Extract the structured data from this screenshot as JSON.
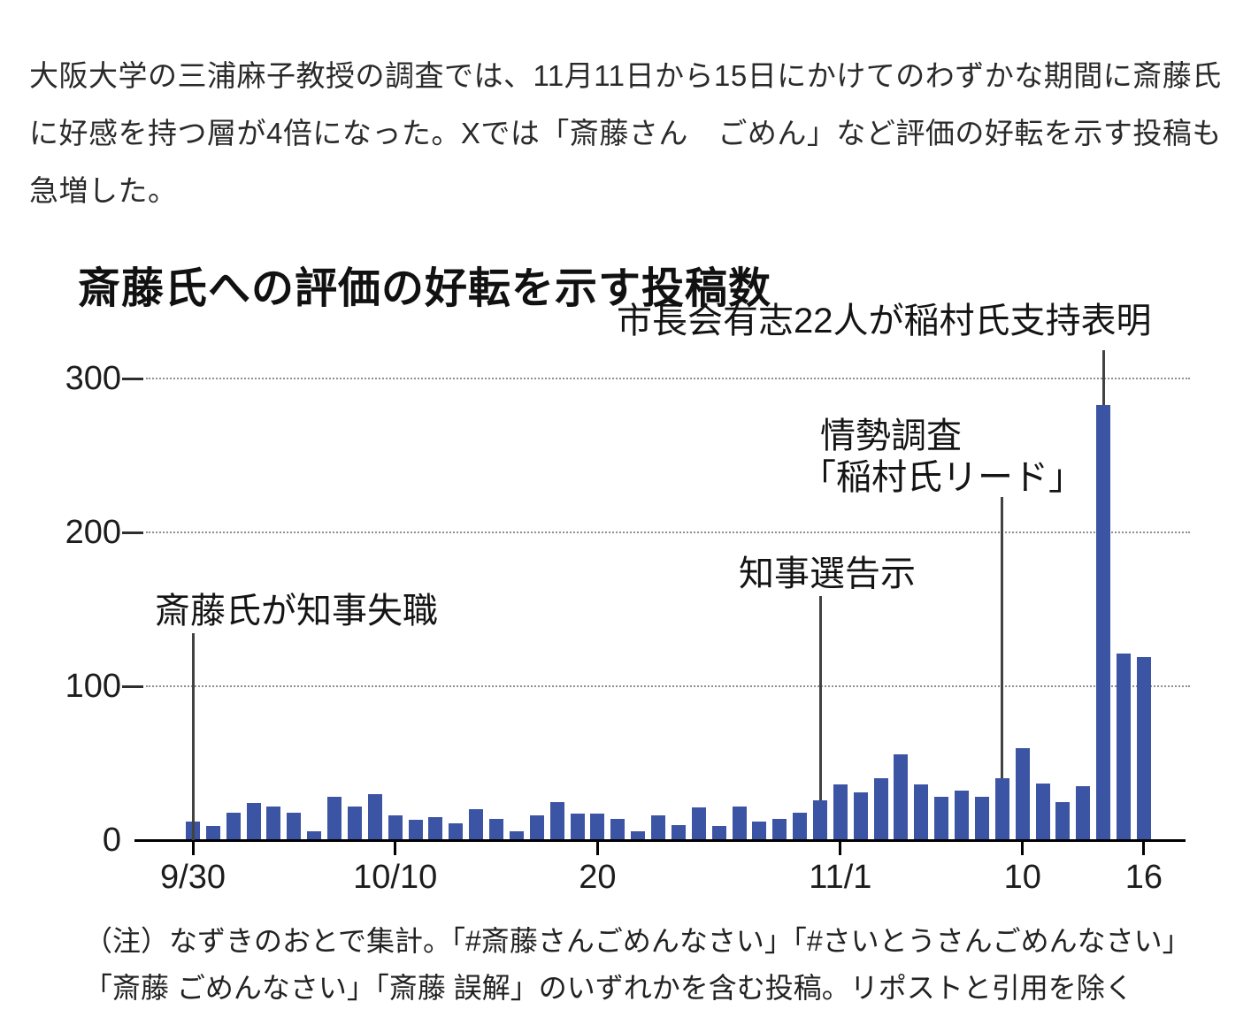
{
  "intro": {
    "text": "大阪大学の三浦麻子教授の調査では、11月11日から15日にかけてのわずかな期間に斎藤氏に好感を持つ層が4倍になった。Xでは「斎藤さん　ごめん」など評価の好転を示す投稿も急増した。"
  },
  "chart_data": {
    "type": "bar",
    "title": "斎藤氏への評価の好転を示す投稿数",
    "x": [
      "9/30",
      "10/1",
      "10/2",
      "10/3",
      "10/4",
      "10/5",
      "10/6",
      "10/7",
      "10/8",
      "10/9",
      "10/10",
      "10/11",
      "10/12",
      "10/13",
      "10/14",
      "10/15",
      "10/16",
      "10/17",
      "10/18",
      "10/19",
      "10/20",
      "10/21",
      "10/22",
      "10/23",
      "10/24",
      "10/25",
      "10/26",
      "10/27",
      "10/28",
      "10/29",
      "10/30",
      "10/31",
      "11/1",
      "11/2",
      "11/3",
      "11/4",
      "11/5",
      "11/6",
      "11/7",
      "11/8",
      "11/9",
      "11/10",
      "11/11",
      "11/12",
      "11/13",
      "11/14",
      "11/15",
      "11/16"
    ],
    "values": [
      12,
      9,
      18,
      24,
      22,
      18,
      6,
      28,
      22,
      30,
      16,
      13,
      15,
      11,
      20,
      14,
      6,
      16,
      25,
      17,
      17,
      14,
      6,
      16,
      10,
      21,
      9,
      22,
      12,
      14,
      18,
      26,
      36,
      31,
      40,
      56,
      36,
      28,
      32,
      28,
      40,
      60,
      37,
      25,
      35,
      283,
      121,
      119
    ],
    "ylim": [
      0,
      300
    ],
    "yticks": [
      0,
      100,
      200,
      300
    ],
    "xticks": [
      {
        "at": "9/30",
        "label": "9/30"
      },
      {
        "at": "10/10",
        "label": "10/10"
      },
      {
        "at": "10/20",
        "label": "20"
      },
      {
        "at": "11/1",
        "label": "11/1"
      },
      {
        "at": "11/10",
        "label": "10"
      },
      {
        "at": "11/16",
        "label": "16"
      }
    ],
    "grid": "horizontal-dotted",
    "legend": "none",
    "bar_color": "#3c54a4",
    "annotations": [
      {
        "id": "saito-loses-governorship",
        "lines": [
          "斎藤氏が知事失職"
        ],
        "date": "9/30"
      },
      {
        "id": "election-announcement",
        "lines": [
          "知事選告示"
        ],
        "date": "10/31"
      },
      {
        "id": "poll-inamura-lead",
        "lines": [
          "情勢調査",
          "「稲村氏リード」"
        ],
        "date": "11/9"
      },
      {
        "id": "mayors-support-inamura",
        "lines": [
          "市長会有志22人が稲村氏支持表明"
        ],
        "date": "11/14"
      }
    ]
  },
  "footnote": {
    "lines": [
      "（注）なずきのおとで集計。「#斎藤さんごめんなさい」「#さいとうさんごめんなさい」",
      "「斎藤 ごめんなさい」「斎藤 誤解」のいずれかを含む投稿。リポストと引用を除く"
    ]
  }
}
